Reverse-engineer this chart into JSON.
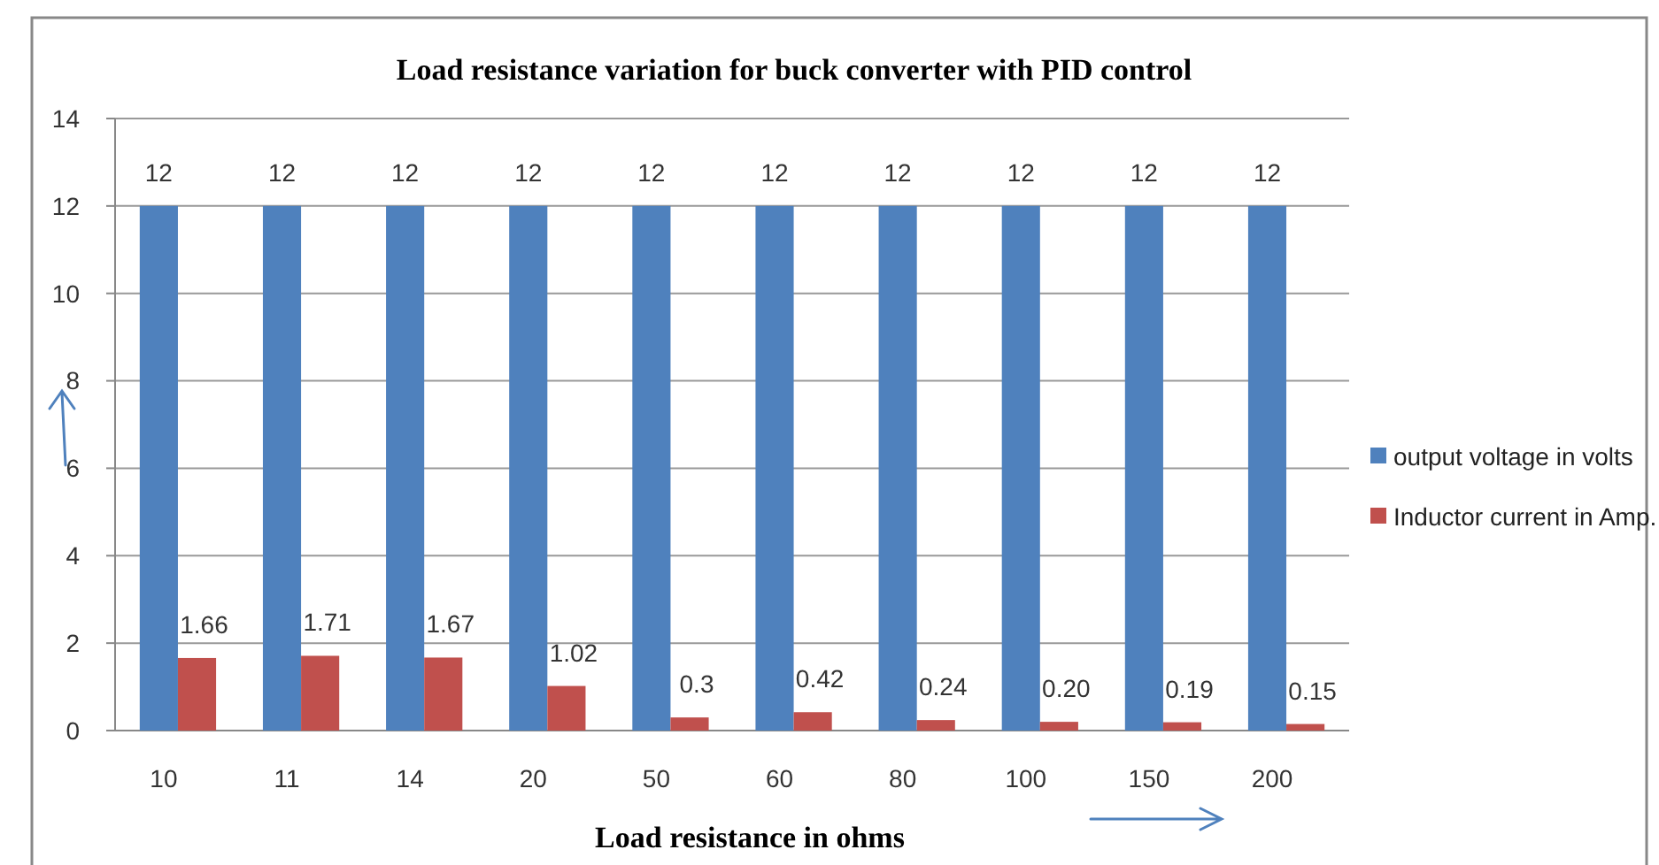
{
  "chart_data": {
    "type": "bar",
    "title": "Load resistance variation for buck converter with PID control",
    "xlabel": "Load resistance in ohms",
    "categories": [
      "10",
      "11",
      "14",
      "20",
      "50",
      "60",
      "80",
      "100",
      "150",
      "200"
    ],
    "series": [
      {
        "name": "output voltage in volts",
        "color": "#4f81bd",
        "values": [
          12,
          12,
          12,
          12,
          12,
          12,
          12,
          12,
          12,
          12
        ],
        "value_labels": [
          "12",
          "12",
          "12",
          "12",
          "12",
          "12",
          "12",
          "12",
          "12",
          "12"
        ]
      },
      {
        "name": "Inductor current in Amp.",
        "color": "#c0504d",
        "values": [
          1.66,
          1.71,
          1.67,
          1.02,
          0.3,
          0.42,
          0.24,
          0.2,
          0.19,
          0.15
        ],
        "value_labels": [
          "1.66",
          "1.71",
          "1.67",
          "1.02",
          "0.3",
          "0.42",
          "0.24",
          "0.20",
          "0.19",
          "0.15"
        ]
      }
    ],
    "ylim": [
      0,
      14
    ],
    "yticks": [
      0,
      2,
      4,
      6,
      8,
      10,
      12,
      14
    ],
    "grid": "y",
    "legend": "right"
  }
}
